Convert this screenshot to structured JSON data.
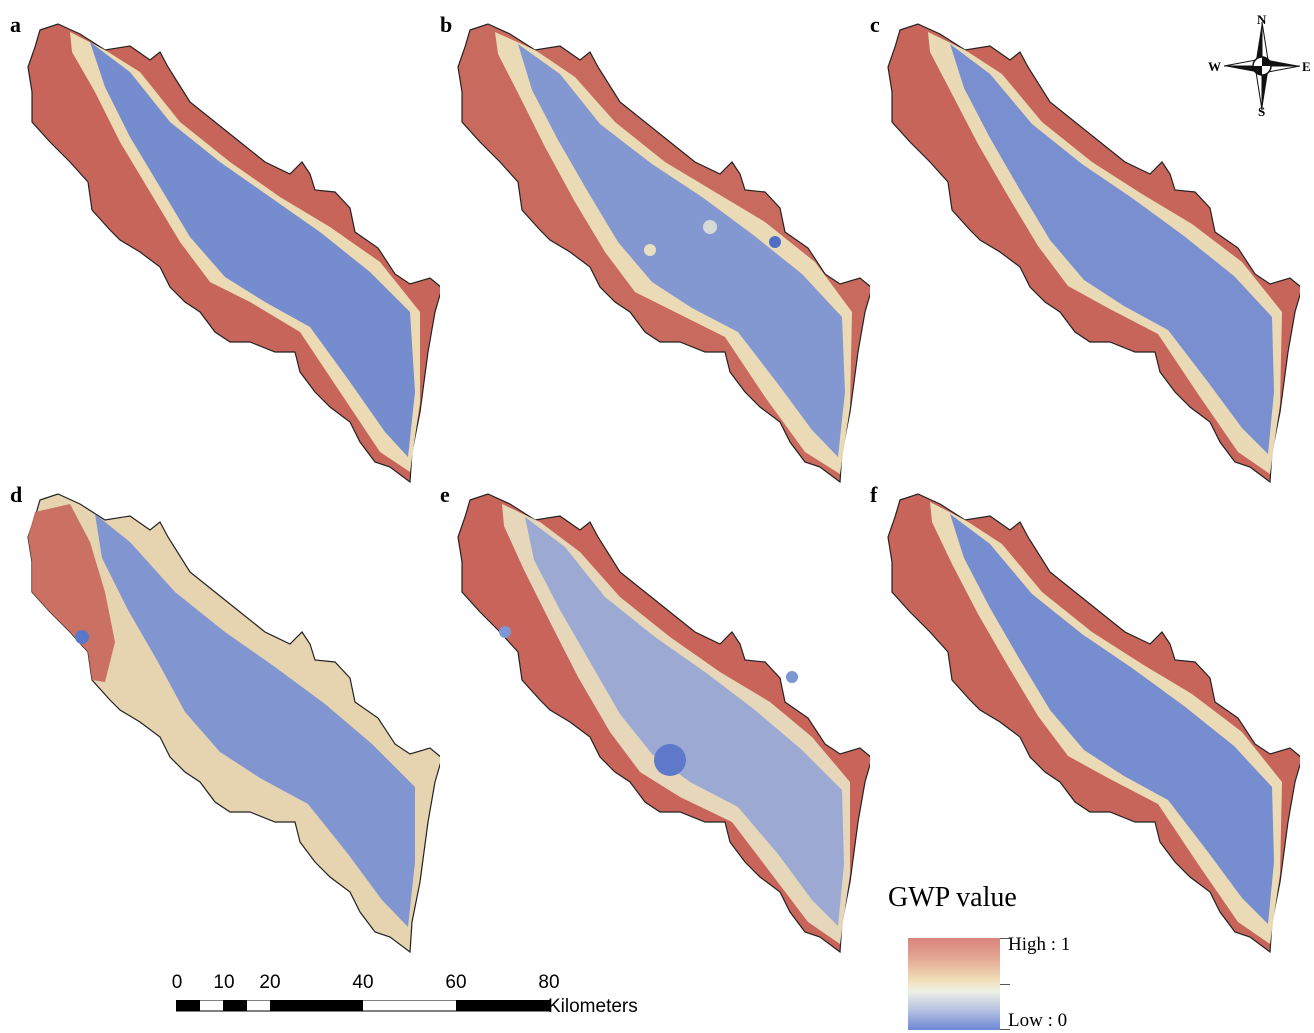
{
  "panels": [
    {
      "label": "a"
    },
    {
      "label": "b"
    },
    {
      "label": "c"
    },
    {
      "label": "d"
    },
    {
      "label": "e"
    },
    {
      "label": "f"
    }
  ],
  "compass": {
    "north": "N",
    "south": "S",
    "east": "E",
    "west": "W"
  },
  "scale_bar": {
    "ticks": [
      "0",
      "10",
      "20",
      "40",
      "60",
      "80"
    ],
    "unit": "Kilometers"
  },
  "legend": {
    "title": "GWP value",
    "high_label": "High : 1",
    "low_label": "Low : 0",
    "colors": {
      "high": "#d9837b",
      "mid": "#f1ddb6",
      "low": "#6d87d6"
    }
  }
}
